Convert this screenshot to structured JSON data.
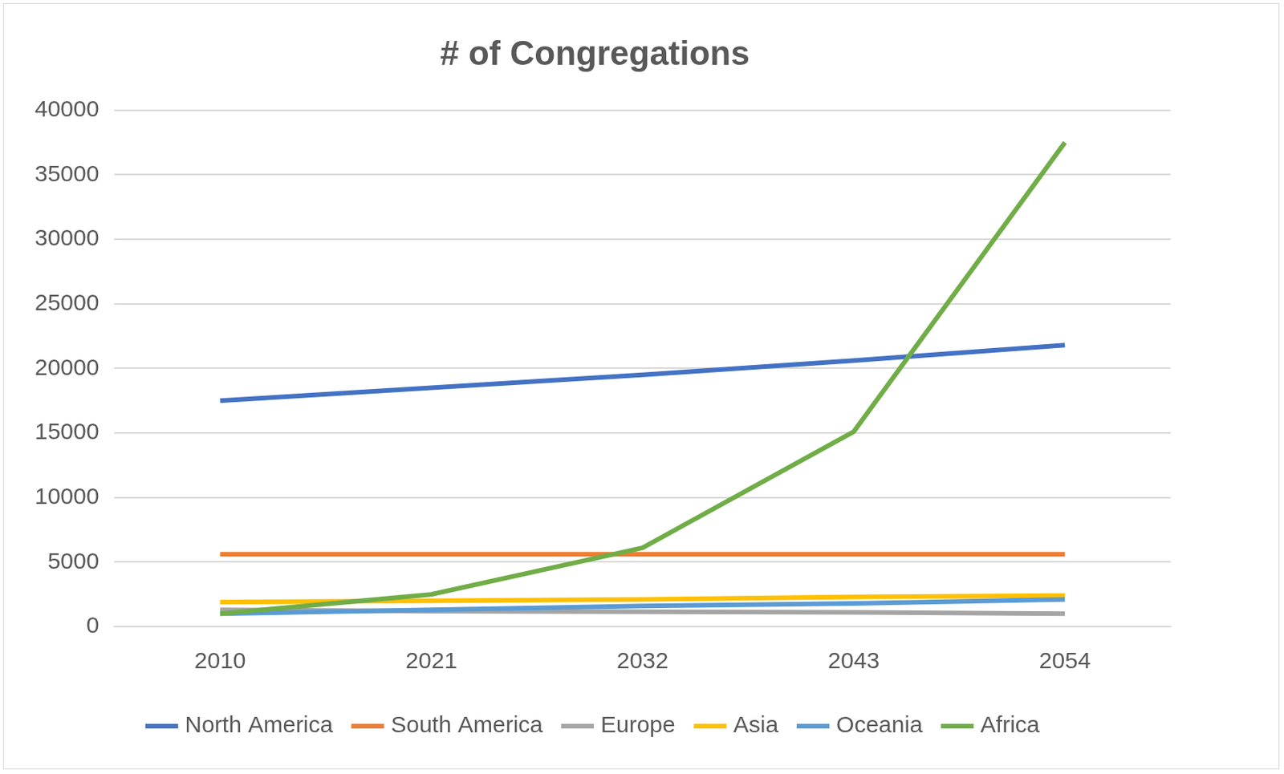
{
  "chart_data": {
    "type": "line",
    "title": "# of Congregations",
    "categories": [
      "2010",
      "2021",
      "2032",
      "2043",
      "2054"
    ],
    "series": [
      {
        "name": "North America",
        "color": "#4472c4",
        "values": [
          17500,
          18500,
          19500,
          20600,
          21800
        ]
      },
      {
        "name": "South America",
        "color": "#ed7d31",
        "values": [
          5600,
          5600,
          5600,
          5600,
          5600
        ]
      },
      {
        "name": "Europe",
        "color": "#a5a5a5",
        "values": [
          1300,
          1200,
          1150,
          1100,
          1000
        ]
      },
      {
        "name": "Asia",
        "color": "#ffc000",
        "values": [
          1900,
          2000,
          2100,
          2300,
          2400
        ]
      },
      {
        "name": "Oceania",
        "color": "#5b9bd5",
        "values": [
          1000,
          1300,
          1600,
          1800,
          2100
        ]
      },
      {
        "name": "Africa",
        "color": "#70ad47",
        "values": [
          1000,
          2500,
          6100,
          15100,
          37500
        ]
      }
    ],
    "ylim": [
      0,
      40000
    ],
    "yticks": [
      0,
      5000,
      10000,
      15000,
      20000,
      25000,
      30000,
      35000,
      40000
    ],
    "grid": true,
    "legend": "bottom"
  }
}
